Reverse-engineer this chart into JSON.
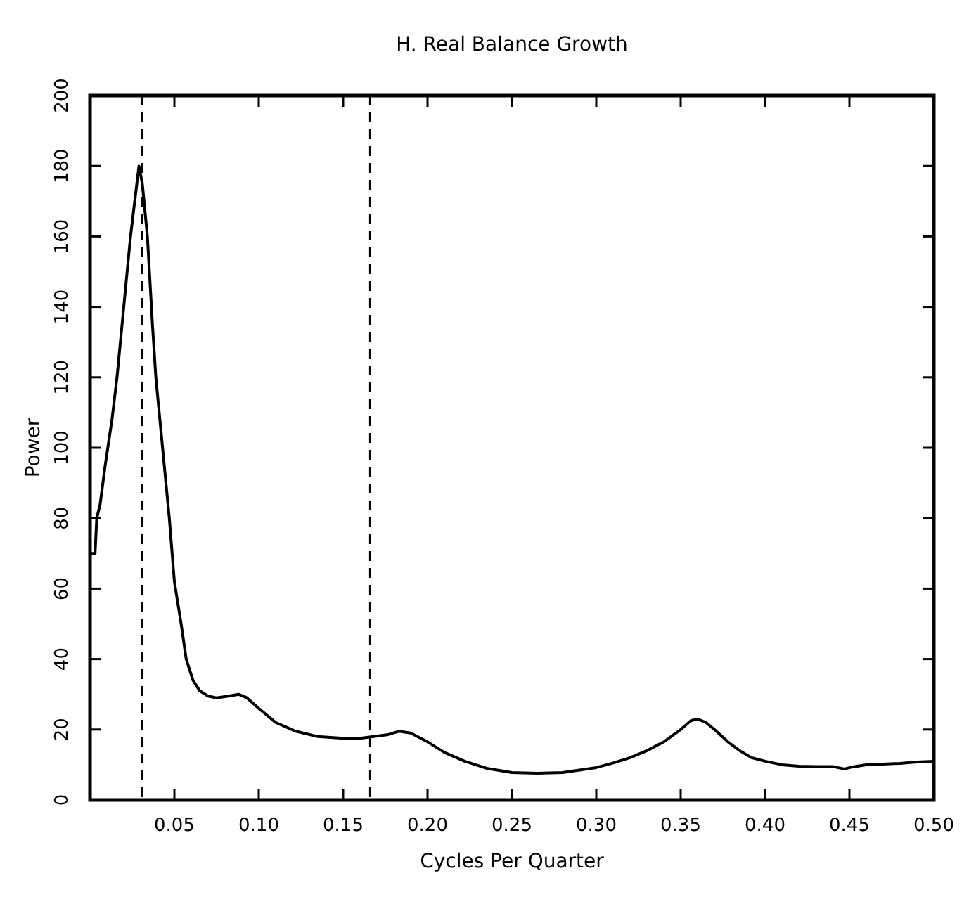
{
  "chart_data": {
    "type": "line",
    "title": "H. Real Balance Growth",
    "xlabel": "Cycles Per Quarter",
    "ylabel": "Power",
    "x": [
      0,
      0.003,
      0.004,
      0.006,
      0.009,
      0.013,
      0.016,
      0.02,
      0.024,
      0.027,
      0.029,
      0.031,
      0.034,
      0.037,
      0.039,
      0.043,
      0.047,
      0.05,
      0.054,
      0.057,
      0.061,
      0.065,
      0.07,
      0.075,
      0.082,
      0.088,
      0.093,
      0.1,
      0.11,
      0.122,
      0.135,
      0.15,
      0.16,
      0.168,
      0.176,
      0.183,
      0.19,
      0.2,
      0.21,
      0.222,
      0.235,
      0.25,
      0.265,
      0.28,
      0.29,
      0.3,
      0.31,
      0.32,
      0.33,
      0.34,
      0.35,
      0.356,
      0.36,
      0.365,
      0.37,
      0.378,
      0.385,
      0.392,
      0.4,
      0.41,
      0.42,
      0.43,
      0.44,
      0.447,
      0.452,
      0.46,
      0.47,
      0.48,
      0.49,
      0.5
    ],
    "series": [
      {
        "color": "#000000",
        "values": [
          70,
          70,
          80,
          84,
          95,
          108,
          120,
          140,
          160,
          172,
          180,
          175,
          160,
          135,
          120,
          100,
          80,
          62,
          50,
          40,
          34,
          31,
          29.5,
          29,
          29.5,
          30,
          29,
          26,
          22,
          19.5,
          18,
          17.5,
          17.5,
          18,
          18.5,
          19.5,
          19,
          16.5,
          13.5,
          11,
          9,
          7.8,
          7.6,
          7.8,
          8.5,
          9.2,
          10.5,
          12,
          14,
          16.5,
          20,
          22.5,
          23,
          22,
          20,
          16.5,
          14,
          12,
          11,
          10,
          9.6,
          9.5,
          9.5,
          8.8,
          9.4,
          10,
          10.2,
          10.4,
          10.8,
          11
        ]
      }
    ],
    "xlim": [
      0,
      0.5
    ],
    "ylim": [
      0,
      200
    ],
    "xticks": [
      {
        "value": 0,
        "label": null
      },
      {
        "value": 0.05,
        "label": "0.05"
      },
      {
        "value": 0.1,
        "label": "0.10"
      },
      {
        "value": 0.15,
        "label": "0.15"
      },
      {
        "value": 0.2,
        "label": "0.20"
      },
      {
        "value": 0.25,
        "label": "0.25"
      },
      {
        "value": 0.3,
        "label": "0.30"
      },
      {
        "value": 0.35,
        "label": "0.35"
      },
      {
        "value": 0.4,
        "label": "0.40"
      },
      {
        "value": 0.45,
        "label": "0.45"
      },
      {
        "value": 0.5,
        "label": "0.50"
      }
    ],
    "yticks": [
      0,
      20,
      40,
      60,
      80,
      100,
      120,
      140,
      160,
      180,
      200
    ],
    "ref_lines": [
      {
        "axis": "x",
        "value": 0.031,
        "line_style": "dashed"
      },
      {
        "axis": "x",
        "value": 0.166,
        "line_style": "dashed"
      }
    ],
    "grid": false,
    "marker": "none",
    "line_style": "solid"
  }
}
